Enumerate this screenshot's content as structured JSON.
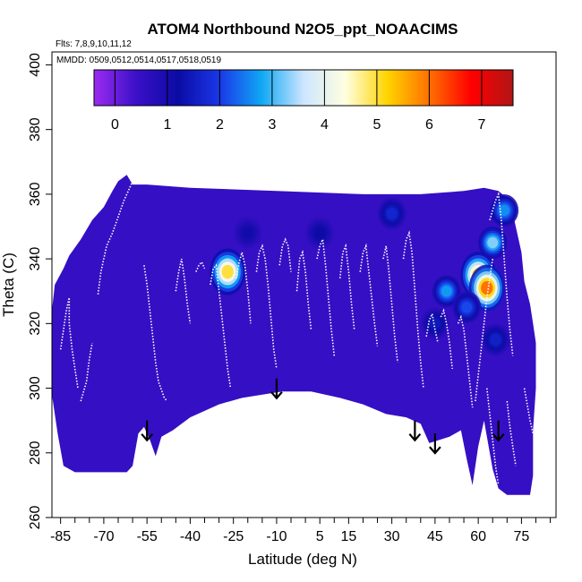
{
  "chart_data": {
    "type": "heatmap",
    "title": "ATOM4 Northbound N2O5_ppt_NOAACIMS",
    "flights_label": "Flts: 7,8,9,10,11,12",
    "dates_label": "MMDD: 0509,0512,0514,0517,0518,0519",
    "xlabel": "Latitude (deg N)",
    "ylabel": "Theta (C)",
    "xlim": [
      -88,
      87
    ],
    "ylim": [
      260,
      404
    ],
    "x_ticks_labeled": [
      -85,
      -70,
      -55,
      -40,
      -25,
      -10,
      5,
      15,
      30,
      45,
      60,
      75
    ],
    "x_ticks_minor": [
      -80,
      -75,
      -65,
      -60,
      -50,
      -45,
      -35,
      -30,
      -20,
      -15,
      -5,
      0,
      10,
      20,
      25,
      35,
      40,
      50,
      55,
      65,
      70,
      80,
      85
    ],
    "y_ticks": [
      260,
      280,
      300,
      320,
      340,
      360,
      380,
      400
    ],
    "colorbar": {
      "min": -0.4,
      "max": 7.6,
      "ticks": [
        0,
        1,
        2,
        3,
        4,
        5,
        6,
        7
      ],
      "colors": [
        "#9b2bf0",
        "#3b10c8",
        "#0b0ba4",
        "#1a38e8",
        "#10a7f4",
        "#cde6ff",
        "#ffffe0",
        "#ffd400",
        "#ff7000",
        "#ff0000",
        "#b01515"
      ]
    },
    "background_value": 0.5,
    "hotspots": [
      {
        "lat": -27,
        "theta": 336,
        "value": 5.8
      },
      {
        "lat": 60,
        "theta": 335,
        "value": 6.0
      },
      {
        "lat": 63,
        "theta": 331,
        "value": 7.0
      },
      {
        "lat": 65,
        "theta": 345,
        "value": 3.8
      },
      {
        "lat": 69,
        "theta": 355,
        "value": 3.0
      },
      {
        "lat": 49,
        "theta": 330,
        "value": 3.1
      },
      {
        "lat": 56,
        "theta": 325,
        "value": 2.4
      },
      {
        "lat": 45,
        "theta": 320,
        "value": 1.6
      },
      {
        "lat": 30,
        "theta": 354,
        "value": 1.9
      },
      {
        "lat": 5,
        "theta": 348,
        "value": 1.3
      },
      {
        "lat": -20,
        "theta": 348,
        "value": 1.2
      },
      {
        "lat": 66,
        "theta": 315,
        "value": 1.8
      }
    ],
    "arrows": [
      {
        "lat": -55,
        "theta": 290
      },
      {
        "lat": -10,
        "theta": 303
      },
      {
        "lat": 38,
        "theta": 290
      },
      {
        "lat": 45,
        "theta": 286
      },
      {
        "lat": 67,
        "theta": 290
      }
    ],
    "flight_tracks": [
      [
        [
          -85,
          312
        ],
        [
          -84,
          318
        ],
        [
          -83,
          324
        ],
        [
          -82,
          328
        ],
        [
          -82,
          320
        ],
        [
          -81,
          312
        ],
        [
          -80,
          306
        ],
        [
          -79,
          300
        ]
      ],
      [
        [
          -72,
          329
        ],
        [
          -71,
          336
        ],
        [
          -70,
          340
        ],
        [
          -69,
          344
        ],
        [
          -67,
          348
        ],
        [
          -65,
          353
        ],
        [
          -63,
          358
        ],
        [
          -61,
          362
        ],
        [
          -60,
          364
        ]
      ],
      [
        [
          -78,
          296
        ],
        [
          -76,
          302
        ],
        [
          -75,
          309
        ],
        [
          -74,
          314
        ]
      ],
      [
        [
          -56,
          338
        ],
        [
          -55,
          332
        ],
        [
          -54,
          324
        ],
        [
          -53,
          316
        ],
        [
          -52,
          308
        ],
        [
          -51,
          302
        ],
        [
          -49,
          297
        ],
        [
          -48,
          296
        ]
      ],
      [
        [
          -45,
          330
        ],
        [
          -44,
          336
        ],
        [
          -43,
          340
        ],
        [
          -42,
          334
        ],
        [
          -41,
          326
        ],
        [
          -40,
          320
        ]
      ],
      [
        [
          -38,
          336
        ],
        [
          -37,
          338
        ],
        [
          -36,
          339
        ],
        [
          -35,
          337
        ]
      ],
      [
        [
          -33,
          332
        ],
        [
          -32,
          337
        ],
        [
          -31,
          338
        ],
        [
          -30,
          330
        ],
        [
          -29,
          322
        ],
        [
          -28,
          314
        ],
        [
          -27,
          306
        ],
        [
          -26,
          300
        ]
      ],
      [
        [
          -24,
          334
        ],
        [
          -23,
          339
        ],
        [
          -22,
          342
        ],
        [
          -21,
          338
        ],
        [
          -20,
          330
        ],
        [
          -19,
          320
        ]
      ],
      [
        [
          -17,
          336
        ],
        [
          -16,
          342
        ],
        [
          -15,
          344
        ],
        [
          -14,
          340
        ],
        [
          -13,
          332
        ],
        [
          -12,
          322
        ],
        [
          -11,
          312
        ],
        [
          -10,
          306
        ]
      ],
      [
        [
          -9,
          338
        ],
        [
          -8,
          344
        ],
        [
          -7,
          346
        ],
        [
          -6,
          344
        ],
        [
          -5,
          336
        ]
      ],
      [
        [
          -3,
          330
        ],
        [
          -2,
          340
        ],
        [
          -1,
          342
        ],
        [
          0,
          336
        ],
        [
          1,
          326
        ],
        [
          2,
          318
        ]
      ],
      [
        [
          4,
          340
        ],
        [
          5,
          344
        ],
        [
          6,
          346
        ],
        [
          7,
          338
        ],
        [
          8,
          328
        ],
        [
          9,
          318
        ],
        [
          10,
          310
        ]
      ],
      [
        [
          12,
          334
        ],
        [
          13,
          342
        ],
        [
          14,
          344
        ],
        [
          15,
          336
        ],
        [
          16,
          326
        ],
        [
          17,
          318
        ]
      ],
      [
        [
          19,
          336
        ],
        [
          20,
          342
        ],
        [
          21,
          344
        ],
        [
          22,
          336
        ],
        [
          23,
          328
        ],
        [
          24,
          320
        ],
        [
          25,
          313
        ]
      ],
      [
        [
          27,
          340
        ],
        [
          28,
          344
        ],
        [
          29,
          336
        ],
        [
          30,
          326
        ],
        [
          31,
          316
        ],
        [
          32,
          308
        ]
      ],
      [
        [
          34,
          340
        ],
        [
          35,
          346
        ],
        [
          36,
          348
        ],
        [
          37,
          342
        ],
        [
          38,
          330
        ],
        [
          39,
          318
        ],
        [
          40,
          308
        ],
        [
          41,
          300
        ]
      ],
      [
        [
          42,
          316
        ],
        [
          43,
          321
        ],
        [
          44,
          323
        ],
        [
          45,
          318
        ],
        [
          46,
          314
        ]
      ],
      [
        [
          47,
          322
        ],
        [
          48,
          324
        ],
        [
          49,
          320
        ],
        [
          50,
          314
        ],
        [
          51,
          306
        ]
      ],
      [
        [
          53,
          320
        ],
        [
          54,
          322
        ],
        [
          55,
          318
        ],
        [
          56,
          310
        ],
        [
          57,
          302
        ],
        [
          58,
          294
        ]
      ],
      [
        [
          59,
          296
        ],
        [
          60,
          304
        ],
        [
          61,
          312
        ],
        [
          62,
          320
        ],
        [
          63,
          328
        ],
        [
          64,
          334
        ],
        [
          65,
          340
        ]
      ],
      [
        [
          64,
          352
        ],
        [
          66,
          358
        ],
        [
          67,
          360
        ],
        [
          68,
          352
        ],
        [
          69,
          340
        ],
        [
          70,
          328
        ],
        [
          71,
          318
        ],
        [
          72,
          310
        ]
      ],
      [
        [
          63,
          300
        ],
        [
          64,
          292
        ],
        [
          65,
          284
        ],
        [
          66,
          276
        ],
        [
          67,
          270
        ]
      ],
      [
        [
          70,
          296
        ],
        [
          71,
          288
        ],
        [
          72,
          282
        ],
        [
          73,
          276
        ]
      ],
      [
        [
          76,
          300
        ],
        [
          77,
          295
        ],
        [
          78,
          290
        ],
        [
          79,
          286
        ]
      ]
    ]
  }
}
